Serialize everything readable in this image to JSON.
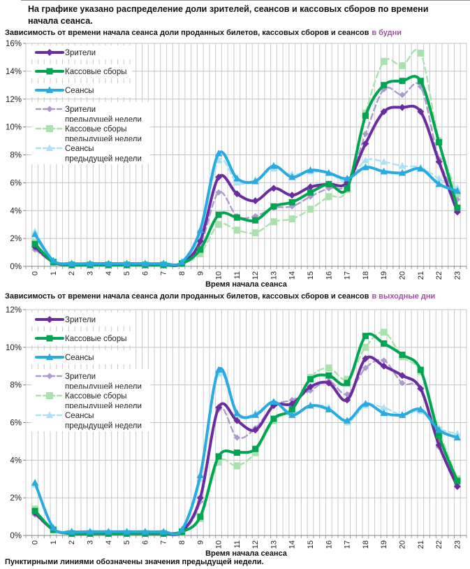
{
  "page": {
    "title": "На графике указано распределение доли зрителей, сеансов и кассовых сборов по времени начала сеанса.",
    "footnote": "Пунктирными линиями обозначены значения предыдущей недели."
  },
  "colors": {
    "viewers": "#6A2CA0",
    "boxoffice": "#00A551",
    "sessions": "#29ABE2",
    "viewers_prev": "#AC9BCD",
    "boxoffice_prev": "#A9E2AC",
    "sessions_prev": "#A9E2F5",
    "subtitle_highlight": "#A0519F",
    "grid": "#C9C9C9",
    "axis": "#808080"
  },
  "chart_data": [
    {
      "type": "line",
      "subtitle": "Зависимость от времени начала сеанса доли проданных билетов, кассовых сборов и сеансов",
      "subtitle_highlight": "в будни",
      "xlabel": "Время начала сеанса",
      "ylim": [
        0,
        16
      ],
      "ystep": 2,
      "grid": true,
      "legend_position": "top-left",
      "x": [
        0,
        1,
        2,
        3,
        4,
        5,
        6,
        7,
        8,
        9,
        10,
        11,
        12,
        13,
        14,
        15,
        16,
        17,
        18,
        19,
        20,
        21,
        22,
        23
      ],
      "series": [
        {
          "name": "Зрители",
          "legend_lines": [
            "Зрители"
          ],
          "color": "#6A2CA0",
          "marker": "diamond",
          "dashed": false,
          "values": [
            1.4,
            0.3,
            0.1,
            0.1,
            0.1,
            0.1,
            0.1,
            0.1,
            0.2,
            1.8,
            6.4,
            5.2,
            4.7,
            5.6,
            5.1,
            5.7,
            5.9,
            6.0,
            8.8,
            11.1,
            11.4,
            11.1,
            7.5,
            3.9
          ]
        },
        {
          "name": "Кассовые сборы",
          "legend_lines": [
            "Кассовые сборы"
          ],
          "color": "#00A551",
          "marker": "square",
          "dashed": false,
          "values": [
            1.6,
            0.3,
            0.1,
            0.1,
            0.1,
            0.1,
            0.1,
            0.1,
            0.2,
            1.2,
            3.7,
            3.5,
            3.3,
            4.3,
            4.6,
            5.3,
            5.9,
            5.6,
            10.8,
            13.0,
            13.3,
            13.3,
            8.9,
            4.2
          ]
        },
        {
          "name": "Сеансы",
          "legend_lines": [
            "Сеансы"
          ],
          "color": "#29ABE2",
          "marker": "triangle",
          "dashed": false,
          "values": [
            2.3,
            0.4,
            0.2,
            0.2,
            0.2,
            0.2,
            0.2,
            0.2,
            0.3,
            2.6,
            8.1,
            6.3,
            6.1,
            7.2,
            6.4,
            6.9,
            6.7,
            6.3,
            7.1,
            6.8,
            6.7,
            7.0,
            5.9,
            5.4
          ]
        },
        {
          "name": "Зрители предыдущей недели",
          "legend_lines": [
            "Зрители",
            "предыдущей недели"
          ],
          "color": "#AC9BCD",
          "marker": "diamond",
          "dashed": true,
          "values": [
            1.2,
            0.3,
            0.1,
            0.1,
            0.1,
            0.1,
            0.1,
            0.1,
            0.2,
            1.5,
            5.3,
            3.6,
            3.6,
            4.2,
            4.3,
            5.0,
            5.6,
            5.9,
            9.5,
            12.7,
            12.3,
            12.9,
            7.7,
            4.8
          ]
        },
        {
          "name": "Кассовые сборы предыдущей недели",
          "legend_lines": [
            "Кассовые сборы",
            "предыдущей недели"
          ],
          "color": "#A9E2AC",
          "marker": "square",
          "dashed": true,
          "values": [
            1.7,
            0.3,
            0.1,
            0.1,
            0.1,
            0.1,
            0.1,
            0.1,
            0.2,
            0.9,
            3.0,
            2.6,
            2.4,
            3.2,
            3.4,
            4.1,
            5.0,
            5.5,
            11.0,
            14.7,
            14.4,
            15.3,
            9.0,
            5.2
          ]
        },
        {
          "name": "Сеансы предыдущей недели",
          "legend_lines": [
            "Сеансы",
            "предыдущей недели"
          ],
          "color": "#A9E2F5",
          "marker": "triangle",
          "dashed": true,
          "values": [
            2.5,
            0.4,
            0.2,
            0.2,
            0.2,
            0.2,
            0.2,
            0.2,
            0.3,
            2.3,
            7.6,
            6.0,
            6.2,
            7.0,
            6.6,
            6.8,
            6.7,
            6.1,
            7.6,
            7.5,
            7.2,
            7.1,
            6.3,
            5.6
          ]
        }
      ]
    },
    {
      "type": "line",
      "subtitle": "Зависимость от времени начала сеанса доли проданных билетов, кассовых сборов и сеансов",
      "subtitle_highlight": "в выходные дни",
      "xlabel": "Время начала сеанса",
      "ylim": [
        0,
        12
      ],
      "ystep": 2,
      "grid": true,
      "legend_position": "top-left",
      "x": [
        0,
        1,
        2,
        3,
        4,
        5,
        6,
        7,
        8,
        9,
        10,
        11,
        12,
        13,
        14,
        15,
        16,
        17,
        18,
        19,
        20,
        21,
        22,
        23
      ],
      "series": [
        {
          "name": "Зрители",
          "legend_lines": [
            "Зрители"
          ],
          "color": "#6A2CA0",
          "marker": "diamond",
          "dashed": false,
          "values": [
            1.2,
            0.3,
            0.1,
            0.1,
            0.1,
            0.1,
            0.1,
            0.1,
            0.2,
            2.0,
            6.8,
            6.1,
            5.6,
            6.9,
            7.0,
            7.9,
            8.1,
            7.2,
            9.4,
            9.0,
            8.5,
            7.8,
            4.8,
            2.6
          ]
        },
        {
          "name": "Кассовые сборы",
          "legend_lines": [
            "Кассовые сборы"
          ],
          "color": "#00A551",
          "marker": "square",
          "dashed": false,
          "values": [
            1.3,
            0.3,
            0.1,
            0.1,
            0.1,
            0.1,
            0.1,
            0.1,
            0.2,
            1.0,
            4.2,
            4.4,
            4.6,
            6.2,
            6.7,
            8.3,
            8.5,
            8.1,
            10.6,
            10.2,
            9.6,
            8.8,
            5.3,
            2.9
          ]
        },
        {
          "name": "Сеансы",
          "legend_lines": [
            "Сеансы"
          ],
          "color": "#29ABE2",
          "marker": "triangle",
          "dashed": false,
          "values": [
            2.8,
            0.4,
            0.2,
            0.2,
            0.2,
            0.2,
            0.2,
            0.2,
            0.3,
            3.2,
            8.8,
            6.5,
            6.4,
            7.1,
            6.4,
            6.9,
            6.7,
            6.1,
            7.0,
            6.5,
            6.4,
            6.7,
            5.6,
            5.2
          ]
        },
        {
          "name": "Зрители предыдущей недели",
          "legend_lines": [
            "Зрители",
            "предыдущей недели"
          ],
          "color": "#AC9BCD",
          "marker": "diamond",
          "dashed": true,
          "values": [
            1.1,
            0.3,
            0.1,
            0.1,
            0.1,
            0.1,
            0.1,
            0.1,
            0.2,
            1.8,
            6.7,
            5.2,
            5.7,
            6.9,
            7.2,
            7.7,
            8.2,
            7.5,
            8.9,
            9.3,
            8.1,
            7.8,
            4.7,
            2.7
          ]
        },
        {
          "name": "Кассовые сборы предыдущей недели",
          "legend_lines": [
            "Кассовые сборы",
            "предыдущей недели"
          ],
          "color": "#A9E2AC",
          "marker": "square",
          "dashed": true,
          "values": [
            1.4,
            0.3,
            0.1,
            0.1,
            0.1,
            0.1,
            0.1,
            0.1,
            0.2,
            0.9,
            3.9,
            3.7,
            4.4,
            6.1,
            6.7,
            8.4,
            8.9,
            8.3,
            10.0,
            10.8,
            9.5,
            8.7,
            5.6,
            3.0
          ]
        },
        {
          "name": "Сеансы предыдущей недели",
          "legend_lines": [
            "Сеансы",
            "предыдущей недели"
          ],
          "color": "#A9E2F5",
          "marker": "triangle",
          "dashed": true,
          "values": [
            2.7,
            0.4,
            0.2,
            0.2,
            0.2,
            0.2,
            0.2,
            0.2,
            0.3,
            3.0,
            8.6,
            6.4,
            6.5,
            7.1,
            6.5,
            6.9,
            6.8,
            6.0,
            6.9,
            6.8,
            6.4,
            6.6,
            5.7,
            5.4
          ]
        }
      ]
    }
  ]
}
